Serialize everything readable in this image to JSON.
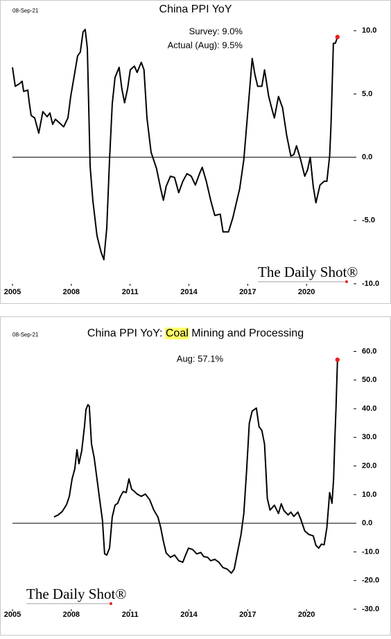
{
  "chart_data": [
    {
      "type": "line",
      "date": "08-Sep-21",
      "title": "China PPI YoY",
      "annotations": [
        "Survey: 9.0%",
        "Actual (Aug): 9.5%"
      ],
      "watermark": "The Daily Shot®",
      "color": "#000000",
      "end_marker_color": "#e8201e",
      "xlim": [
        2005,
        2022.4
      ],
      "xticks": [
        2005,
        2008,
        2011,
        2014,
        2017,
        2020
      ],
      "ylim": [
        -10,
        11.6
      ],
      "yticks": [
        {
          "value": 10,
          "label": "10.0"
        },
        {
          "value": 5,
          "label": "5.0"
        },
        {
          "value": 0,
          "label": "0.0"
        },
        {
          "value": -5,
          "label": "-5.0"
        },
        {
          "value": -10,
          "label": "-10.0"
        }
      ],
      "zero_line": true,
      "x": [
        2005.0,
        2005.14,
        2005.35,
        2005.49,
        2005.57,
        2005.78,
        2005.85,
        2005.95,
        2006.13,
        2006.34,
        2006.55,
        2006.77,
        2006.91,
        2007.05,
        2007.19,
        2007.4,
        2007.61,
        2007.83,
        2007.97,
        2008.18,
        2008.32,
        2008.46,
        2008.6,
        2008.71,
        2008.82,
        2008.96,
        2009.1,
        2009.31,
        2009.52,
        2009.66,
        2009.81,
        2009.95,
        2010.09,
        2010.23,
        2010.44,
        2010.58,
        2010.72,
        2010.87,
        2011.01,
        2011.22,
        2011.36,
        2011.57,
        2011.71,
        2011.86,
        2012.07,
        2012.35,
        2012.56,
        2012.7,
        2012.84,
        2013.06,
        2013.27,
        2013.48,
        2013.69,
        2013.9,
        2014.12,
        2014.33,
        2014.54,
        2014.68,
        2014.89,
        2015.11,
        2015.32,
        2015.6,
        2015.74,
        2016.02,
        2016.24,
        2016.45,
        2016.59,
        2016.8,
        2017.01,
        2017.23,
        2017.37,
        2017.51,
        2017.72,
        2017.86,
        2018.07,
        2018.22,
        2018.36,
        2018.57,
        2018.78,
        2018.99,
        2019.2,
        2019.35,
        2019.49,
        2019.7,
        2019.91,
        2020.05,
        2020.19,
        2020.34,
        2020.48,
        2020.69,
        2020.9,
        2021.04,
        2021.18,
        2021.25,
        2021.37,
        2021.47,
        2021.58
      ],
      "values": [
        7.1,
        5.6,
        5.8,
        6.0,
        5.2,
        5.3,
        4.4,
        3.3,
        3.1,
        1.9,
        3.6,
        3.2,
        3.5,
        2.6,
        3.0,
        2.7,
        2.4,
        3.1,
        4.8,
        6.7,
        8.0,
        8.3,
        9.9,
        10.1,
        8.6,
        -0.7,
        -3.4,
        -6.2,
        -7.5,
        -8.1,
        -5.6,
        -0.2,
        4.2,
        6.3,
        7.1,
        5.4,
        4.3,
        5.4,
        6.9,
        7.2,
        6.7,
        7.5,
        6.9,
        3.1,
        0.4,
        -0.9,
        -2.5,
        -3.4,
        -2.3,
        -1.5,
        -1.6,
        -2.8,
        -1.9,
        -1.3,
        -1.5,
        -2.2,
        -1.3,
        -0.8,
        -1.9,
        -3.4,
        -4.6,
        -4.5,
        -5.9,
        -5.9,
        -4.8,
        -3.4,
        -2.5,
        -0.2,
        3.7,
        7.8,
        6.5,
        5.6,
        5.6,
        6.9,
        4.8,
        3.9,
        3.1,
        4.8,
        3.9,
        1.7,
        0.1,
        0.2,
        0.9,
        -0.2,
        -1.5,
        -1.0,
        0.0,
        -2.3,
        -3.6,
        -2.2,
        -1.9,
        -1.9,
        0.1,
        2.6,
        9.0,
        9.0,
        9.5
      ]
    },
    {
      "type": "line",
      "date": "08-Sep-21",
      "title_parts": [
        "China PPI YoY: ",
        "Coal",
        " Mining and Processing"
      ],
      "highlight_part": 1,
      "highlight_color": "#ffff66",
      "annotations": [
        "Aug: 57.1%"
      ],
      "watermark": "The Daily Shot®",
      "color": "#000000",
      "end_marker_color": "#e8201e",
      "xlim": [
        2005,
        2022.4
      ],
      "xticks": [
        2005,
        2008,
        2011,
        2014,
        2017,
        2020
      ],
      "ylim": [
        -30,
        64
      ],
      "yticks": [
        {
          "value": 60,
          "label": "60.0"
        },
        {
          "value": 50,
          "label": "50.0"
        },
        {
          "value": 40,
          "label": "40.0"
        },
        {
          "value": 30,
          "label": "30.0"
        },
        {
          "value": 20,
          "label": "20.0"
        },
        {
          "value": 10,
          "label": "10.0"
        },
        {
          "value": 0,
          "label": "0.0"
        },
        {
          "value": -10,
          "label": "-10.0"
        },
        {
          "value": -20,
          "label": "-20.0"
        },
        {
          "value": -30,
          "label": "-30.0"
        }
      ],
      "zero_line": true,
      "x": [
        2007.12,
        2007.33,
        2007.54,
        2007.76,
        2007.9,
        2008.04,
        2008.18,
        2008.29,
        2008.39,
        2008.53,
        2008.67,
        2008.75,
        2008.85,
        2008.92,
        2009.03,
        2009.17,
        2009.31,
        2009.45,
        2009.59,
        2009.7,
        2009.81,
        2009.95,
        2010.09,
        2010.23,
        2010.37,
        2010.51,
        2010.65,
        2010.8,
        2010.94,
        2011.08,
        2011.22,
        2011.36,
        2011.57,
        2011.78,
        2012.0,
        2012.21,
        2012.42,
        2012.56,
        2012.7,
        2012.84,
        2013.06,
        2013.27,
        2013.48,
        2013.69,
        2013.83,
        2013.98,
        2014.19,
        2014.4,
        2014.61,
        2014.75,
        2014.96,
        2015.11,
        2015.32,
        2015.53,
        2015.74,
        2015.95,
        2016.17,
        2016.31,
        2016.45,
        2016.66,
        2016.8,
        2016.94,
        2017.08,
        2017.23,
        2017.44,
        2017.58,
        2017.72,
        2017.86,
        2018.0,
        2018.14,
        2018.36,
        2018.57,
        2018.71,
        2018.85,
        2019.06,
        2019.2,
        2019.35,
        2019.56,
        2019.7,
        2019.91,
        2020.12,
        2020.34,
        2020.48,
        2020.62,
        2020.76,
        2020.9,
        2021.04,
        2021.18,
        2021.3,
        2021.38,
        2021.45,
        2021.5,
        2021.58
      ],
      "values": [
        2.2,
        2.9,
        4.1,
        6.5,
        9.4,
        15.5,
        19.0,
        25.7,
        20.8,
        25.2,
        33.7,
        39.7,
        41.4,
        40.9,
        27.6,
        22.8,
        15.5,
        8.2,
        1.0,
        -10.7,
        -11.1,
        -8.7,
        2.2,
        6.3,
        7.0,
        9.4,
        11.1,
        10.7,
        15.5,
        11.9,
        11.1,
        10.2,
        9.4,
        10.2,
        8.2,
        4.6,
        2.2,
        -1.5,
        -6.3,
        -10.4,
        -11.9,
        -11.1,
        -13.1,
        -13.6,
        -11.1,
        -8.7,
        -9.2,
        -10.7,
        -10.2,
        -11.6,
        -11.9,
        -13.1,
        -12.6,
        -13.6,
        -15.5,
        -16.0,
        -17.4,
        -16.0,
        -11.1,
        -3.9,
        3.4,
        17.9,
        34.9,
        39.2,
        40.2,
        33.7,
        32.4,
        27.6,
        8.7,
        4.6,
        6.3,
        3.4,
        6.8,
        4.4,
        2.9,
        3.9,
        2.4,
        3.9,
        1.5,
        -2.7,
        -3.9,
        -4.4,
        -7.7,
        -8.7,
        -7.3,
        -7.5,
        -1.5,
        10.7,
        7.0,
        15.5,
        30.0,
        39.7,
        57.1
      ]
    }
  ]
}
